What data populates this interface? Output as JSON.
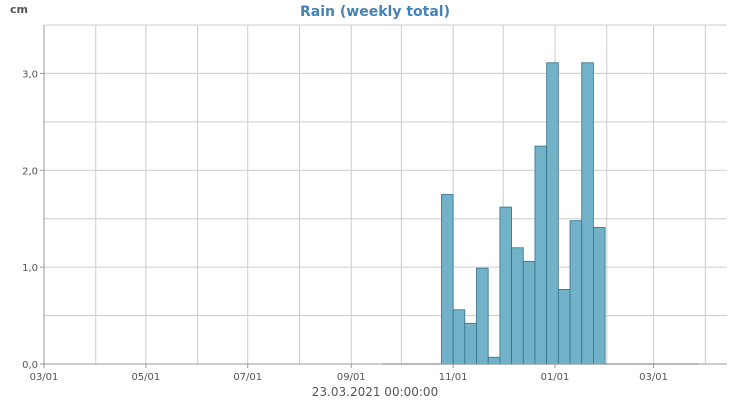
{
  "chart_data": {
    "type": "bar",
    "title": "Rain (weekly total)",
    "ylabel": "cm",
    "xlabel": "23.03.2021 00:00:00",
    "ylim": [
      0,
      3.5
    ],
    "y_ticks": [
      "0,0",
      "1,0",
      "2,0",
      "3,0"
    ],
    "y_tick_values": [
      0,
      1,
      2,
      3
    ],
    "x_range": [
      "2020-03-01",
      "2021-04-14"
    ],
    "x_ticks": [
      {
        "date": "2020-03-01",
        "label": "03/01"
      },
      {
        "date": "2020-05-01",
        "label": "05/01"
      },
      {
        "date": "2020-07-01",
        "label": "07/01"
      },
      {
        "date": "2020-09-01",
        "label": "09/01"
      },
      {
        "date": "2020-11-01",
        "label": "11/01"
      },
      {
        "date": "2021-01-01",
        "label": "01/01"
      },
      {
        "date": "2021-03-01",
        "label": "03/01"
      }
    ],
    "x_grid_dates": [
      "2020-03-01",
      "2020-04-01",
      "2020-05-01",
      "2020-06-01",
      "2020-07-01",
      "2020-08-01",
      "2020-09-01",
      "2020-10-01",
      "2020-11-01",
      "2020-12-01",
      "2021-01-01",
      "2021-02-01",
      "2021-03-01",
      "2021-04-01"
    ],
    "grid": true,
    "bar_color": "#72b2c8",
    "bar_edge_color": "#34708a",
    "title_color": "#4682b4",
    "data_range": [
      "2020-09-20",
      "2021-03-28"
    ],
    "series": [
      {
        "points": [
          {
            "start": "2020-10-25",
            "value": 1.75
          },
          {
            "start": "2020-11-01",
            "value": 0.56
          },
          {
            "start": "2020-11-08",
            "value": 0.42
          },
          {
            "start": "2020-11-15",
            "value": 0.99
          },
          {
            "start": "2020-11-22",
            "value": 0.07
          },
          {
            "start": "2020-11-29",
            "value": 1.62
          },
          {
            "start": "2020-12-06",
            "value": 1.2
          },
          {
            "start": "2020-12-13",
            "value": 1.06
          },
          {
            "start": "2020-12-20",
            "value": 2.25
          },
          {
            "start": "2020-12-27",
            "value": 3.11
          },
          {
            "start": "2021-01-03",
            "value": 0.77
          },
          {
            "start": "2021-01-10",
            "value": 1.48
          },
          {
            "start": "2021-01-17",
            "value": 3.11
          },
          {
            "start": "2021-01-24",
            "value": 1.41
          }
        ]
      }
    ]
  }
}
